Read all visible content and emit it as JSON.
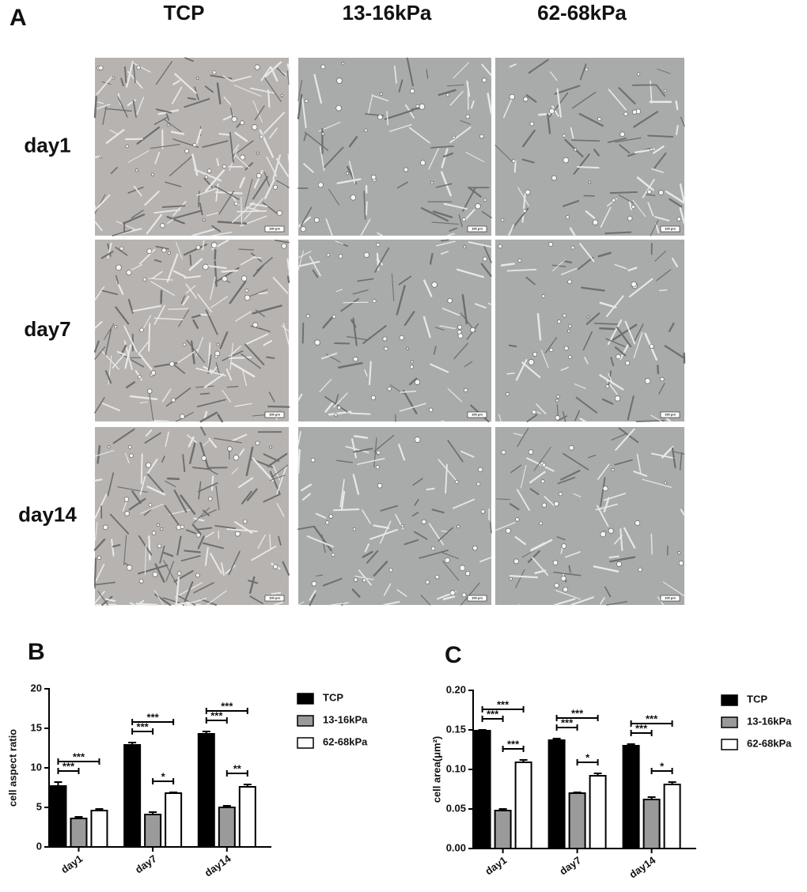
{
  "panel_a": {
    "label": "A",
    "columns": [
      "TCP",
      "13-16kPa",
      "62-68kPa"
    ],
    "rows": [
      "day1",
      "day7",
      "day14"
    ],
    "scale_bar": "100 μm"
  },
  "chart_data": [
    {
      "type": "bar",
      "panel": "B",
      "y_label": "cell aspect ratio",
      "categories": [
        "day1",
        "day7",
        "day14"
      ],
      "series": [
        {
          "name": "TCP",
          "color": "#000000",
          "values": [
            7.7,
            12.9,
            14.3
          ],
          "errors": [
            0.5,
            0.3,
            0.3
          ]
        },
        {
          "name": "13-16kPa",
          "color": "#9a9a9a",
          "values": [
            3.6,
            4.1,
            5.0
          ],
          "errors": [
            0.2,
            0.3,
            0.2
          ]
        },
        {
          "name": "62-68kPa",
          "color": "#ffffff",
          "values": [
            4.6,
            6.8,
            7.6
          ],
          "errors": [
            0.2,
            0.1,
            0.3
          ]
        }
      ],
      "ylim": [
        0,
        20
      ],
      "yticks": [
        0,
        5,
        10,
        15,
        20
      ],
      "legend": "right",
      "significance": [
        {
          "category": "day1",
          "from": "TCP",
          "to": "13-16kPa",
          "label": "***"
        },
        {
          "category": "day1",
          "from": "TCP",
          "to": "62-68kPa",
          "label": "***"
        },
        {
          "category": "day7",
          "from": "TCP",
          "to": "13-16kPa",
          "label": "***"
        },
        {
          "category": "day7",
          "from": "TCP",
          "to": "62-68kPa",
          "label": "***"
        },
        {
          "category": "day7",
          "from": "13-16kPa",
          "to": "62-68kPa",
          "label": "*"
        },
        {
          "category": "day14",
          "from": "TCP",
          "to": "13-16kPa",
          "label": "***"
        },
        {
          "category": "day14",
          "from": "TCP",
          "to": "62-68kPa",
          "label": "***"
        },
        {
          "category": "day14",
          "from": "13-16kPa",
          "to": "62-68kPa",
          "label": "**"
        }
      ]
    },
    {
      "type": "bar",
      "panel": "C",
      "y_label": "cell area(μm²)",
      "categories": [
        "day1",
        "day7",
        "day14"
      ],
      "series": [
        {
          "name": "TCP",
          "color": "#000000",
          "values": [
            0.149,
            0.137,
            0.13
          ],
          "errors": [
            0.001,
            0.002,
            0.002
          ]
        },
        {
          "name": "13-16kPa",
          "color": "#9a9a9a",
          "values": [
            0.048,
            0.07,
            0.062
          ],
          "errors": [
            0.002,
            0.001,
            0.003
          ]
        },
        {
          "name": "62-68kPa",
          "color": "#ffffff",
          "values": [
            0.109,
            0.092,
            0.081
          ],
          "errors": [
            0.003,
            0.003,
            0.003
          ]
        }
      ],
      "ylim": [
        0,
        0.2
      ],
      "yticks": [
        {
          "value": 0,
          "label": "0.00"
        },
        {
          "value": 0.05,
          "label": "0.05"
        },
        {
          "value": 0.1,
          "label": "0.10"
        },
        {
          "value": 0.15,
          "label": "0.15"
        },
        {
          "value": 0.2,
          "label": "0.20"
        }
      ],
      "legend": "right",
      "significance": [
        {
          "category": "day1",
          "from": "TCP",
          "to": "13-16kPa",
          "label": "***"
        },
        {
          "category": "day1",
          "from": "TCP",
          "to": "62-68kPa",
          "label": "***"
        },
        {
          "category": "day1",
          "from": "13-16kPa",
          "to": "62-68kPa",
          "label": "***"
        },
        {
          "category": "day7",
          "from": "TCP",
          "to": "13-16kPa",
          "label": "***"
        },
        {
          "category": "day7",
          "from": "TCP",
          "to": "62-68kPa",
          "label": "***"
        },
        {
          "category": "day7",
          "from": "13-16kPa",
          "to": "62-68kPa",
          "label": "*"
        },
        {
          "category": "day14",
          "from": "TCP",
          "to": "13-16kPa",
          "label": "***"
        },
        {
          "category": "day14",
          "from": "TCP",
          "to": "62-68kPa",
          "label": "***"
        },
        {
          "category": "day14",
          "from": "13-16kPa",
          "to": "62-68kPa",
          "label": "*"
        }
      ]
    }
  ]
}
